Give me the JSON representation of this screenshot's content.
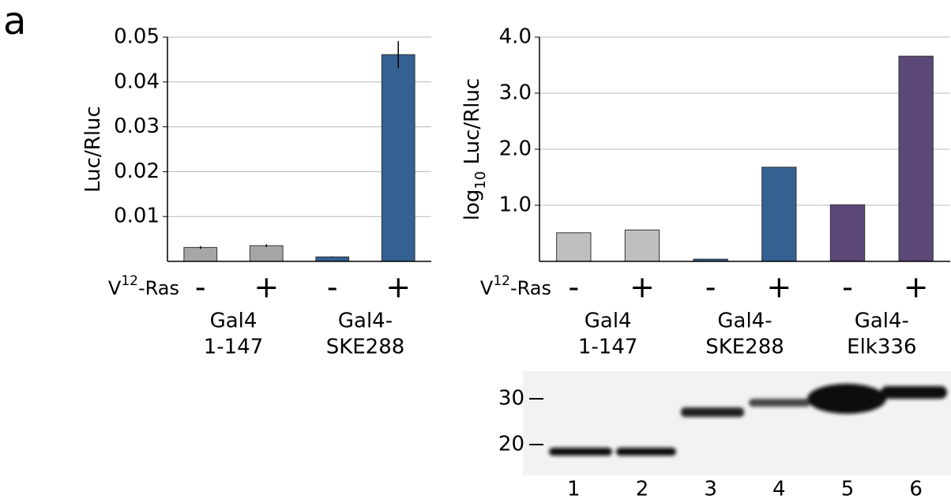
{
  "panel_label": "a",
  "chart_data": [
    {
      "type": "bar",
      "y_label_parts": [
        "Luc/Rluc"
      ],
      "categories": [
        "-",
        "+",
        "-",
        "+"
      ],
      "values": [
        0.0031,
        0.0035,
        0.001,
        0.0461
      ],
      "errors": [
        0.0003,
        0.0003,
        0.0001,
        0.003
      ],
      "colors": [
        "#a6a6a6",
        "#a6a6a6",
        "#356092",
        "#356092"
      ],
      "ylim": [
        0,
        0.05
      ],
      "yticks": [
        0.01,
        0.02,
        0.03,
        0.04,
        0.05
      ],
      "grid": true,
      "row_label_parts": [
        "V",
        "12",
        "-Ras"
      ],
      "groups": [
        [
          "Gal4",
          "1-147"
        ],
        [
          "Gal4-",
          "SKE288"
        ]
      ]
    },
    {
      "type": "bar",
      "y_label_parts": [
        "log",
        "10",
        " Luc/Rluc"
      ],
      "categories": [
        "-",
        "+",
        "-",
        "+",
        "-",
        "+"
      ],
      "values": [
        0.51,
        0.56,
        0.04,
        1.68,
        1.01,
        3.66
      ],
      "colors": [
        "#bfbfbf",
        "#bfbfbf",
        "#356092",
        "#356092",
        "#5b4778",
        "#5b4778"
      ],
      "ylim": [
        0,
        4
      ],
      "yticks": [
        {
          "value": 1,
          "label": "1.0"
        },
        {
          "value": 2,
          "label": "2.0"
        },
        {
          "value": 3,
          "label": "3.0"
        },
        {
          "value": 4,
          "label": "4.0"
        }
      ],
      "grid": true,
      "row_label_parts": [
        "V",
        "12",
        "-Ras"
      ],
      "groups": [
        [
          "Gal4",
          "1-147"
        ],
        [
          "Gal4-",
          "SKE288"
        ],
        [
          "Gal4-",
          "Elk336"
        ]
      ]
    }
  ],
  "blot": {
    "markers": [
      "30",
      "20"
    ],
    "lanes": [
      "1",
      "2",
      "3",
      "4",
      "5",
      "6"
    ]
  }
}
